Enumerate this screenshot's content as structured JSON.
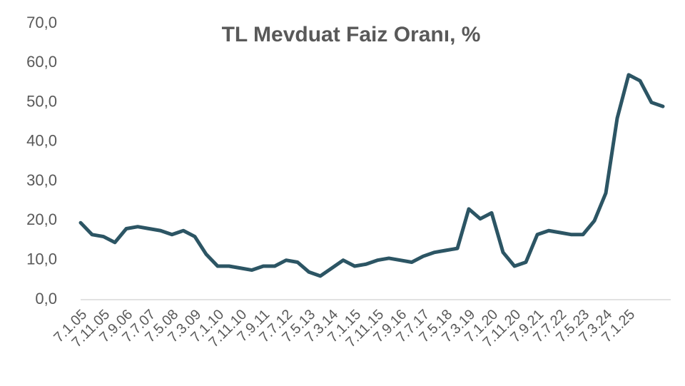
{
  "chart_data": {
    "type": "line",
    "title": "TL  Mevduat Faiz Oranı, %",
    "categories": [
      "7.1.05",
      null,
      "7.11.05",
      null,
      "7.9.06",
      null,
      "7.7.07",
      null,
      "7.5.08",
      null,
      "7.3.09",
      null,
      "7.1.10",
      null,
      "7.11.10",
      null,
      "7.9.11",
      null,
      "7.7.12",
      null,
      "7.5.13",
      null,
      "7.3.14",
      null,
      "7.1.15",
      null,
      "7.11.15",
      null,
      "7.9.16",
      null,
      "7.7.17",
      null,
      "7.5.18",
      null,
      "7.3.19",
      null,
      "7.1.20",
      null,
      "7.11.20",
      null,
      "7.9.21",
      null,
      "7.7.22",
      null,
      "7.5.23",
      null,
      "7.3.24",
      null,
      "7.1.25",
      null,
      null,
      null
    ],
    "series": [
      {
        "name": "TL Mevduat Faiz Oranı",
        "color": "#2c5564",
        "values": [
          19.5,
          16.5,
          16,
          14.5,
          18,
          18.5,
          18,
          17.5,
          16.5,
          17.5,
          16,
          11.5,
          8.5,
          8.5,
          8,
          7.5,
          8.5,
          8.5,
          10,
          9.5,
          7,
          6,
          8,
          10,
          8.5,
          9,
          10,
          10.5,
          10,
          9.5,
          11,
          12,
          12.5,
          13,
          23,
          20.5,
          22,
          12,
          8.5,
          9.5,
          16.5,
          17.5,
          17,
          16.5,
          16.5,
          20,
          27,
          46,
          57,
          55.5,
          50,
          49
        ]
      }
    ],
    "ylim": [
      0,
      70
    ],
    "yticks": [
      {
        "value": 0,
        "label": "0,0"
      },
      {
        "value": 10,
        "label": "10,0"
      },
      {
        "value": 20,
        "label": "20,0"
      },
      {
        "value": 30,
        "label": "30,0"
      },
      {
        "value": 40,
        "label": "40,0"
      },
      {
        "value": 50,
        "label": "50,0"
      },
      {
        "value": 60,
        "label": "60,0"
      },
      {
        "value": 70,
        "label": "70,0"
      }
    ]
  }
}
